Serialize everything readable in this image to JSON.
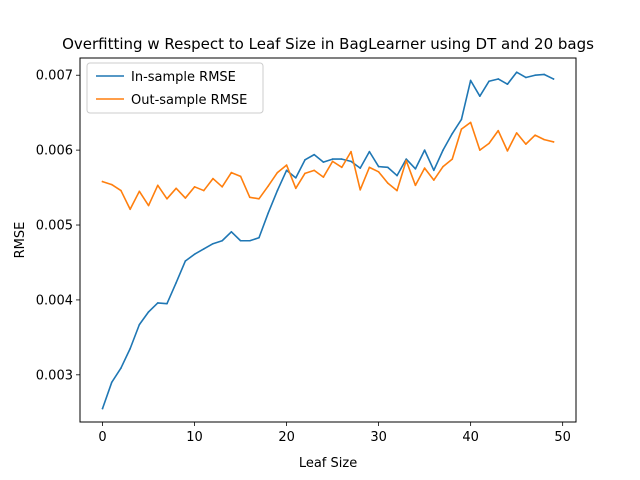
{
  "chart_data": {
    "type": "line",
    "title": "Overfitting w Respect to Leaf Size in BagLearner using DT and 20 bags",
    "xlabel": "Leaf Size",
    "ylabel": "RMSE",
    "xlim": [
      -2.45,
      51.45
    ],
    "ylim": [
      0.00237,
      0.00723
    ],
    "xticks": [
      0,
      10,
      20,
      30,
      40,
      50
    ],
    "xtick_labels": [
      "0",
      "10",
      "20",
      "30",
      "40",
      "50"
    ],
    "yticks": [
      0.003,
      0.004,
      0.005,
      0.006,
      0.007
    ],
    "ytick_labels": [
      "0.003",
      "0.004",
      "0.005",
      "0.006",
      "0.007"
    ],
    "grid": false,
    "legend_position": "top-left",
    "x": [
      0,
      1,
      2,
      3,
      4,
      5,
      6,
      7,
      8,
      9,
      10,
      11,
      12,
      13,
      14,
      15,
      16,
      17,
      18,
      19,
      20,
      21,
      22,
      23,
      24,
      25,
      26,
      27,
      28,
      29,
      30,
      31,
      32,
      33,
      34,
      35,
      36,
      37,
      38,
      39,
      40,
      41,
      42,
      43,
      44,
      45,
      46,
      47,
      48,
      49
    ],
    "series": [
      {
        "name": "In-sample RMSE",
        "color": "#1f77b4",
        "values": [
          0.00255,
          0.0029,
          0.00309,
          0.00335,
          0.00367,
          0.00384,
          0.00396,
          0.00395,
          0.00423,
          0.00452,
          0.00461,
          0.00468,
          0.00475,
          0.00479,
          0.00491,
          0.00479,
          0.00479,
          0.00483,
          0.00516,
          0.00546,
          0.00573,
          0.00563,
          0.00587,
          0.00594,
          0.00584,
          0.00588,
          0.00588,
          0.00585,
          0.00576,
          0.00598,
          0.00578,
          0.00577,
          0.00566,
          0.00588,
          0.00575,
          0.006,
          0.00573,
          0.006,
          0.00622,
          0.00641,
          0.00693,
          0.00672,
          0.00692,
          0.00695,
          0.00688,
          0.00704,
          0.00697,
          0.007,
          0.00701,
          0.00695
        ]
      },
      {
        "name": "Out-sample RMSE",
        "color": "#ff7f0e",
        "values": [
          0.00558,
          0.00554,
          0.00546,
          0.00521,
          0.00545,
          0.00526,
          0.00553,
          0.00535,
          0.00549,
          0.00536,
          0.00551,
          0.00546,
          0.00562,
          0.00551,
          0.0057,
          0.00565,
          0.00537,
          0.00535,
          0.00552,
          0.0057,
          0.0058,
          0.00549,
          0.00569,
          0.00573,
          0.00564,
          0.00585,
          0.00577,
          0.00598,
          0.00547,
          0.00577,
          0.00571,
          0.00556,
          0.00546,
          0.00586,
          0.00553,
          0.00576,
          0.0056,
          0.00578,
          0.00588,
          0.00628,
          0.00637,
          0.006,
          0.00609,
          0.00626,
          0.00599,
          0.00623,
          0.00608,
          0.0062,
          0.00614,
          0.00611
        ]
      }
    ]
  }
}
